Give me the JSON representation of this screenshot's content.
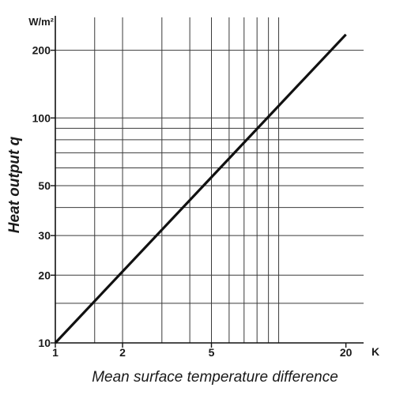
{
  "chart_data": {
    "type": "line",
    "xscale": "log",
    "yscale": "log",
    "xlim": [
      1,
      24
    ],
    "ylim": [
      10,
      280
    ],
    "x_ticks": [
      1,
      2,
      5,
      20
    ],
    "x_tick_labels": [
      "1",
      "2",
      "5",
      "20"
    ],
    "x_grid": [
      1.5,
      2,
      3,
      4,
      5,
      6,
      7,
      8,
      9,
      10
    ],
    "y_ticks": [
      10,
      20,
      30,
      50,
      100,
      200
    ],
    "y_tick_labels": [
      "10",
      "20",
      "30",
      "50",
      "100",
      "200"
    ],
    "y_grid": [
      15,
      20,
      30,
      40,
      50,
      60,
      70,
      80,
      90,
      100,
      200
    ],
    "xlabel": "Mean surface temperature difference",
    "ylabel": "Heat output q",
    "x_unit": "K",
    "y_unit": "W/m²",
    "grid": true,
    "series": [
      {
        "points": [
          {
            "x": 1,
            "y": 10
          },
          {
            "x": 20,
            "y": 235
          }
        ]
      }
    ]
  }
}
